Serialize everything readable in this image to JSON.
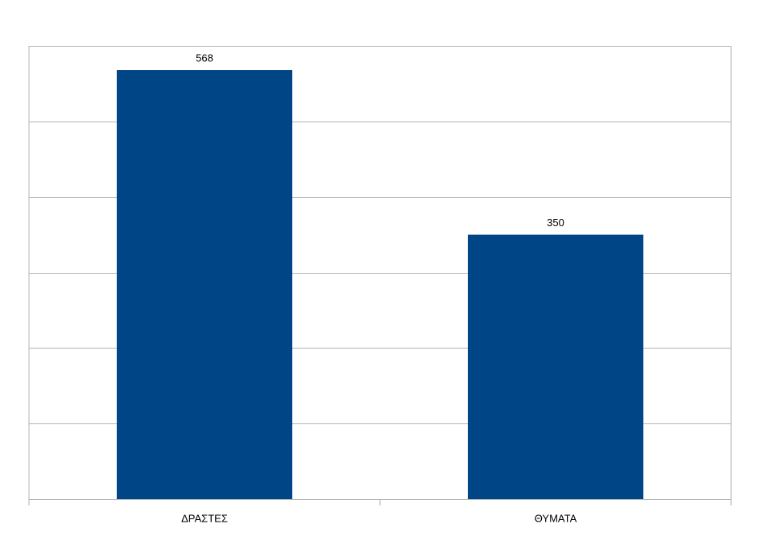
{
  "chart_data": {
    "type": "bar",
    "categories": [
      "ΔΡΑΣΤΕΣ",
      "ΘΥΜΑΤΑ"
    ],
    "values": [
      568,
      350
    ],
    "color": "#004586",
    "ylim": [
      0,
      600
    ],
    "yticks": [
      0,
      100,
      200,
      300,
      400,
      500,
      600
    ],
    "grid": true
  }
}
